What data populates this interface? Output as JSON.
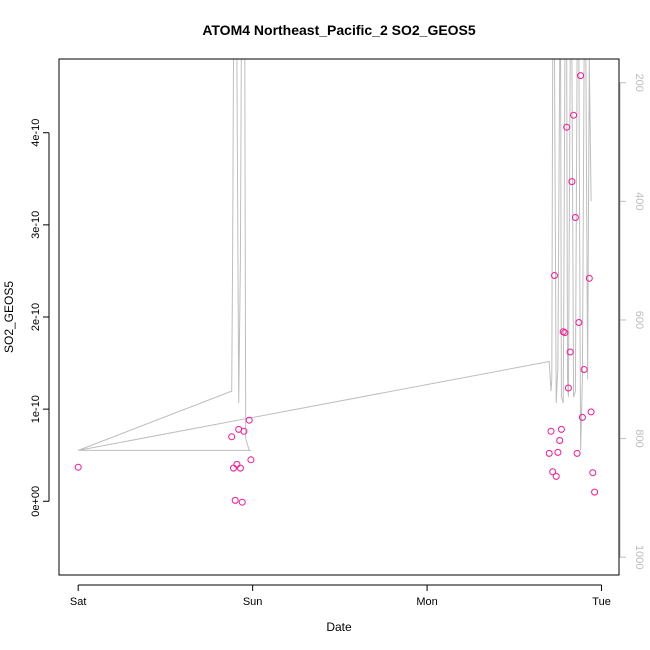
{
  "chart_data": {
    "type": "scatter",
    "title": "ATOM4 Northeast_Pacific_2 SO2_GEOS5",
    "xlabel": "Date",
    "ylabel": "SO2_GEOS5",
    "x_axis": {
      "scale": "time (days)",
      "range": [
        -0.11,
        3.1
      ],
      "ticks": [
        {
          "value": 0,
          "label": "Sat"
        },
        {
          "value": 1,
          "label": "Sun"
        },
        {
          "value": 2,
          "label": "Mon"
        },
        {
          "value": 3,
          "label": "Tue"
        }
      ]
    },
    "y_axis": {
      "range": [
        -8e-11,
        4.8e-10
      ],
      "ticks": [
        {
          "value": 0,
          "label": "0e+00"
        },
        {
          "value": 1e-10,
          "label": "1e-10"
        },
        {
          "value": 2e-10,
          "label": "2e-10"
        },
        {
          "value": 3e-10,
          "label": "3e-10"
        },
        {
          "value": 4e-10,
          "label": "4e-10"
        }
      ]
    },
    "y2_axis": {
      "description": "secondary (pressure-like) axis, inverted, grey",
      "range": [
        1030,
        160
      ],
      "ticks": [
        {
          "value": 200,
          "label": "200"
        },
        {
          "value": 400,
          "label": "400"
        },
        {
          "value": 600,
          "label": "600"
        },
        {
          "value": 800,
          "label": "800"
        },
        {
          "value": 1000,
          "label": "1000"
        }
      ]
    },
    "colors": {
      "points": "#ff1493",
      "line": "#bebebe",
      "right_axis": "#bebebe"
    },
    "series": [
      {
        "role": "points",
        "x": [
          0.0,
          0.88,
          0.89,
          0.9,
          0.91,
          0.92,
          0.93,
          0.94,
          0.95,
          0.98,
          0.99,
          2.7,
          2.71,
          2.72,
          2.73,
          2.74,
          2.75,
          2.76,
          2.77,
          2.78,
          2.79,
          2.8,
          2.81,
          2.82,
          2.83,
          2.84,
          2.85,
          2.86,
          2.87,
          2.88,
          2.89,
          2.9,
          2.93,
          2.94,
          2.95,
          2.96
        ],
        "y": [
          3.7e-11,
          7e-11,
          3.6e-11,
          1e-12,
          4e-11,
          7.8e-11,
          3.6e-11,
          -1e-12,
          7.6e-11,
          8.8e-11,
          4.5e-11,
          5.2e-11,
          7.6e-11,
          3.2e-11,
          2.45e-10,
          2.7e-11,
          5.3e-11,
          6.6e-11,
          7.8e-11,
          1.84e-10,
          1.83e-10,
          4.06e-10,
          1.23e-10,
          1.62e-10,
          3.47e-10,
          4.19e-10,
          3.08e-10,
          5.2e-11,
          1.94e-10,
          4.62e-10,
          9.1e-11,
          1.43e-10,
          2.42e-10,
          9.7e-11,
          3.1e-11,
          1e-11
        ]
      },
      {
        "role": "line",
        "axis": "y2",
        "x": [
          0.0,
          0.88,
          0.885,
          0.89,
          0.9,
          0.91,
          0.92,
          0.93,
          0.935,
          0.94,
          0.95,
          0.955,
          0.96,
          0.98,
          0.99,
          0.0,
          2.7,
          2.71,
          2.715,
          2.72,
          2.73,
          2.74,
          2.75,
          2.76,
          2.765,
          2.77,
          2.78,
          2.785,
          2.79,
          2.8,
          2.805,
          2.81,
          2.82,
          2.83,
          2.84,
          2.85,
          2.86,
          2.87,
          2.88,
          2.89,
          2.9,
          2.91,
          2.92,
          2.93,
          2.94
        ],
        "y": [
          820,
          720,
          500,
          160,
          160,
          160,
          740,
          500,
          160,
          160,
          160,
          160,
          800,
          820,
          820,
          820,
          670,
          720,
          700,
          160,
          160,
          740,
          680,
          160,
          160,
          730,
          740,
          500,
          160,
          160,
          700,
          730,
          160,
          160,
          730,
          720,
          160,
          160,
          820,
          700,
          160,
          160,
          700,
          160,
          400
        ]
      }
    ]
  }
}
